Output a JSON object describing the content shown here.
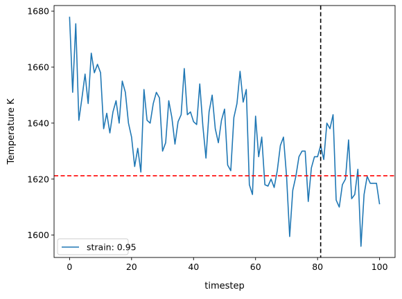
{
  "chart_data": {
    "type": "line",
    "title": "",
    "xlabel": "timestep",
    "ylabel": "Temperature K",
    "xlim": [
      -5,
      105
    ],
    "ylim": [
      1592,
      1682
    ],
    "xticks": [
      0,
      20,
      40,
      60,
      80,
      100
    ],
    "yticks": [
      1600,
      1620,
      1640,
      1660,
      1680
    ],
    "grid": false,
    "legend_position": "lower-left",
    "series": [
      {
        "name": "strain: 0.95",
        "color": "#1f77b4",
        "x": [
          0,
          1,
          2,
          3,
          4,
          5,
          6,
          7,
          8,
          9,
          10,
          11,
          12,
          13,
          14,
          15,
          16,
          17,
          18,
          19,
          20,
          21,
          22,
          23,
          24,
          25,
          26,
          27,
          28,
          29,
          30,
          31,
          32,
          33,
          34,
          35,
          36,
          37,
          38,
          39,
          40,
          41,
          42,
          43,
          44,
          45,
          46,
          47,
          48,
          49,
          50,
          51,
          52,
          53,
          54,
          55,
          56,
          57,
          58,
          59,
          60,
          61,
          62,
          63,
          64,
          65,
          66,
          67,
          68,
          69,
          70,
          71,
          72,
          73,
          74,
          75,
          76,
          77,
          78,
          79,
          80,
          81,
          82,
          83,
          84,
          85,
          86,
          87,
          88,
          89,
          90,
          91,
          92,
          93,
          94,
          95,
          96,
          97,
          98,
          99,
          100
        ],
        "values": [
          1678,
          1651,
          1675.5,
          1641,
          1649,
          1657.5,
          1647,
          1665,
          1658,
          1661,
          1658,
          1638,
          1643.5,
          1636.5,
          1644,
          1648,
          1640,
          1655,
          1651,
          1640,
          1635,
          1624.5,
          1631,
          1622.5,
          1652,
          1641,
          1640,
          1647,
          1651,
          1649,
          1630,
          1633,
          1648,
          1642,
          1632.5,
          1640.5,
          1643,
          1659.5,
          1643,
          1644,
          1640.5,
          1639.5,
          1654,
          1639,
          1627.5,
          1644,
          1650,
          1638,
          1633,
          1641,
          1645,
          1625,
          1623,
          1642,
          1647,
          1658.5,
          1647.5,
          1652,
          1618,
          1614.5,
          1642.5,
          1628,
          1635,
          1618,
          1617.5,
          1620,
          1617,
          1623,
          1632,
          1635,
          1621,
          1599.5,
          1616,
          1621,
          1628,
          1630,
          1630,
          1612,
          1624,
          1628,
          1628,
          1632,
          1627,
          1640,
          1638,
          1643,
          1612.5,
          1610,
          1618,
          1620,
          1634,
          1613,
          1614.5,
          1623.5,
          1596,
          1614.5,
          1621,
          1618.5,
          1618.5,
          1618.5,
          1611
        ]
      }
    ],
    "reference_lines": [
      {
        "orientation": "horizontal",
        "value": 1621.2,
        "color": "#ff0000",
        "style": "dashed"
      },
      {
        "orientation": "vertical",
        "value": 81,
        "color": "#000000",
        "style": "dashed"
      }
    ]
  }
}
